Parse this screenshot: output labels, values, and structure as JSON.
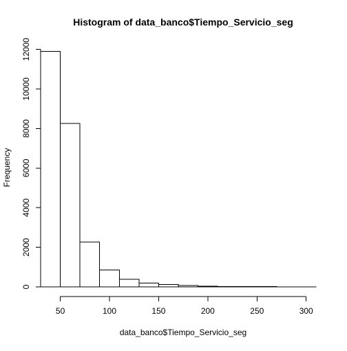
{
  "chart_data": {
    "type": "bar",
    "title": "Histogram of data_banco$Tiempo_Servicio_seg",
    "xlabel": "data_banco$Tiempo_Servicio_seg",
    "ylabel": "Frequency",
    "bins": [
      [
        30,
        50
      ],
      [
        50,
        70
      ],
      [
        70,
        90
      ],
      [
        90,
        110
      ],
      [
        110,
        130
      ],
      [
        130,
        150
      ],
      [
        150,
        170
      ],
      [
        170,
        190
      ],
      [
        190,
        210
      ],
      [
        210,
        230
      ],
      [
        230,
        250
      ],
      [
        250,
        270
      ],
      [
        270,
        290
      ],
      [
        290,
        310
      ]
    ],
    "values": [
      11900,
      8250,
      2270,
      850,
      380,
      200,
      120,
      70,
      35,
      25,
      20,
      12,
      4,
      2
    ],
    "xlim": [
      30,
      310
    ],
    "ylim": [
      0,
      12000
    ],
    "x_ticks": [
      "50",
      "100",
      "150",
      "200",
      "250",
      "300"
    ],
    "y_ticks": [
      "0",
      "2000",
      "4000",
      "6000",
      "8000",
      "10000",
      "12000"
    ],
    "grid": false,
    "colors": {
      "bar_fill": "#ffffff",
      "bar_stroke": "#000000",
      "background": "#ffffff"
    }
  }
}
